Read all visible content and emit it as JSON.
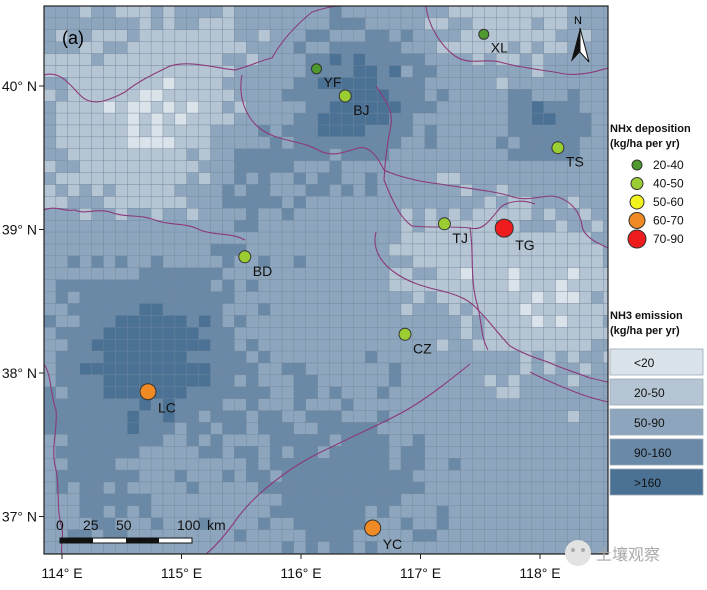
{
  "panel_label": "(a)",
  "north_label": "N",
  "x_axis_ticks": [
    {
      "lon": 114,
      "label": "114° E"
    },
    {
      "lon": 115,
      "label": "115° E"
    },
    {
      "lon": 116,
      "label": "116° E"
    },
    {
      "lon": 117,
      "label": "117° E"
    },
    {
      "lon": 118,
      "label": "118° E"
    }
  ],
  "y_axis_ticks": [
    {
      "lat": 40,
      "label": "40° N"
    },
    {
      "lat": 39,
      "label": "39° N"
    },
    {
      "lat": 38,
      "label": "38° N"
    },
    {
      "lat": 37,
      "label": "37° N"
    }
  ],
  "scale_bar": {
    "ticks": [
      "0",
      "25",
      "50",
      "100"
    ],
    "unit": "km"
  },
  "deposition_legend": {
    "title_line1": "NHx deposition",
    "title_line2": "(kg/ha per yr)",
    "classes": [
      {
        "label": "20-40",
        "color": "#4e9a2e"
      },
      {
        "label": "40-50",
        "color": "#9acd32"
      },
      {
        "label": "50-60",
        "color": "#f2f21e"
      },
      {
        "label": "60-70",
        "color": "#f08a24"
      },
      {
        "label": "70-90",
        "color": "#ee1c1c"
      }
    ]
  },
  "emission_legend": {
    "title_line1": "NH3 emission",
    "title_line2": "(kg/ha per yr)",
    "classes": [
      {
        "label": "<20",
        "color": "#dbe3ea"
      },
      {
        "label": "20-50",
        "color": "#b5c5d3"
      },
      {
        "label": "50-90",
        "color": "#8ea6bd"
      },
      {
        "label": "90-160",
        "color": "#6a89a7"
      },
      {
        "label": ">160",
        "color": "#4b7295"
      }
    ]
  },
  "sites": [
    {
      "code": "XL",
      "lon": 117.53,
      "lat": 40.36,
      "class": "20-40"
    },
    {
      "code": "YF",
      "lon": 116.13,
      "lat": 40.12,
      "class": "20-40"
    },
    {
      "code": "BJ",
      "lon": 116.37,
      "lat": 39.93,
      "class": "40-50"
    },
    {
      "code": "TS",
      "lon": 118.15,
      "lat": 39.57,
      "class": "40-50"
    },
    {
      "code": "TJ",
      "lon": 117.2,
      "lat": 39.04,
      "class": "40-50"
    },
    {
      "code": "TG",
      "lon": 117.7,
      "lat": 39.01,
      "class": "70-90"
    },
    {
      "code": "BD",
      "lon": 115.53,
      "lat": 38.81,
      "class": "40-50"
    },
    {
      "code": "CZ",
      "lon": 116.87,
      "lat": 38.27,
      "class": "40-50"
    },
    {
      "code": "LC",
      "lon": 114.72,
      "lat": 37.87,
      "class": "60-70"
    },
    {
      "code": "YC",
      "lon": 116.6,
      "lat": 36.92,
      "class": "60-70"
    }
  ],
  "watermark": "土壤观察",
  "colors": {
    "boundary": "#8b3a7a",
    "grid": "#6f8499",
    "frame": "#222222"
  }
}
